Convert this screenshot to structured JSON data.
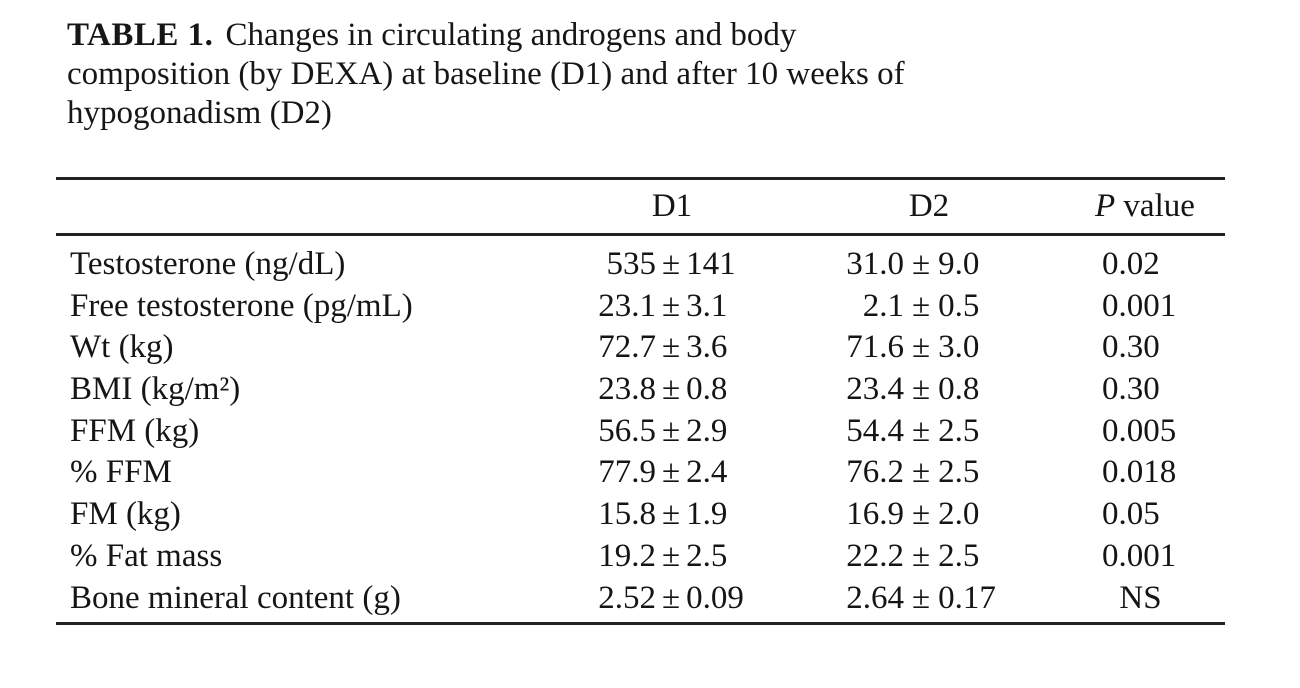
{
  "title": {
    "label": "TABLE 1.",
    "line1": "Changes in circulating androgens and body",
    "line2": "composition (by DEXA) at baseline (D1) and after 10 weeks of",
    "line3": "hypogonadism (D2)"
  },
  "table": {
    "plus_minus": "±",
    "columns": {
      "label": "",
      "d1": "D1",
      "d2": "D2",
      "p_italic": "P",
      "p_rest": " value"
    },
    "rows": [
      {
        "label": "Testosterone (ng/dL)",
        "d1_mean": "535",
        "d1_sd": "141",
        "d2_mean": "31.0",
        "d2_sd": "9.0",
        "p": "0.02"
      },
      {
        "label": "Free testosterone (pg/mL)",
        "d1_mean": "23.1",
        "d1_sd": "3.1",
        "d2_mean": "2.1",
        "d2_sd": "0.5",
        "p": "0.001"
      },
      {
        "label": "Wt (kg)",
        "d1_mean": "72.7",
        "d1_sd": "3.6",
        "d2_mean": "71.6",
        "d2_sd": "3.0",
        "p": "0.30"
      },
      {
        "label": "BMI (kg/m²)",
        "d1_mean": "23.8",
        "d1_sd": "0.8",
        "d2_mean": "23.4",
        "d2_sd": "0.8",
        "p": "0.30"
      },
      {
        "label": "FFM (kg)",
        "d1_mean": "56.5",
        "d1_sd": "2.9",
        "d2_mean": "54.4",
        "d2_sd": "2.5",
        "p": "0.005"
      },
      {
        "label": "% FFM",
        "d1_mean": "77.9",
        "d1_sd": "2.4",
        "d2_mean": "76.2",
        "d2_sd": "2.5",
        "p": "0.018"
      },
      {
        "label": "FM (kg)",
        "d1_mean": "15.8",
        "d1_sd": "1.9",
        "d2_mean": "16.9",
        "d2_sd": "2.0",
        "p": "0.05"
      },
      {
        "label": "% Fat mass",
        "d1_mean": "19.2",
        "d1_sd": "2.5",
        "d2_mean": "22.2",
        "d2_sd": "2.5",
        "p": "0.001"
      },
      {
        "label": "Bone mineral content (g)",
        "d1_mean": "2.52",
        "d1_sd": "0.09",
        "d2_mean": "2.64",
        "d2_sd": "0.17",
        "p": "NS"
      }
    ]
  }
}
